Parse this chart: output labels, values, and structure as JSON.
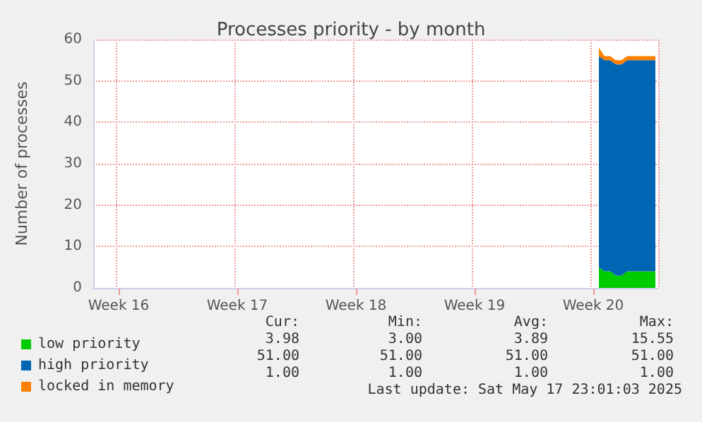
{
  "chart_data": {
    "type": "area",
    "stacked": true,
    "title": "Processes priority - by month",
    "ylabel": "Number of processes",
    "categories": [
      null,
      null,
      null,
      null,
      "Week 16",
      null,
      null,
      null,
      null,
      null,
      null,
      null,
      null,
      null,
      null,
      null,
      null,
      null,
      null,
      null,
      null,
      null,
      null,
      null,
      null,
      "Week 17",
      null,
      null,
      null,
      null,
      null,
      null,
      null,
      null,
      null,
      null,
      null,
      null,
      null,
      null,
      null,
      null,
      null,
      null,
      null,
      null,
      "Week 18",
      null,
      null,
      null,
      null,
      null,
      null,
      null,
      null,
      null,
      null,
      null,
      null,
      null,
      null,
      null,
      null,
      null,
      null,
      null,
      null,
      "Week 19",
      null,
      null,
      null,
      null,
      null,
      null,
      null,
      null,
      null,
      null,
      null,
      null,
      null,
      null,
      null,
      null,
      null,
      null,
      null,
      null,
      "Week 20",
      null,
      null,
      null,
      null,
      null,
      null,
      null,
      null,
      null,
      null,
      null
    ],
    "series": [
      {
        "name": "low priority",
        "color": "#00cc00",
        "values": [
          null,
          null,
          null,
          null,
          null,
          null,
          null,
          null,
          null,
          null,
          null,
          null,
          null,
          null,
          null,
          null,
          null,
          null,
          null,
          null,
          null,
          null,
          null,
          null,
          null,
          null,
          null,
          null,
          null,
          null,
          null,
          null,
          null,
          null,
          null,
          null,
          null,
          null,
          null,
          null,
          null,
          null,
          null,
          null,
          null,
          null,
          null,
          null,
          null,
          null,
          null,
          null,
          null,
          null,
          null,
          null,
          null,
          null,
          null,
          null,
          null,
          null,
          null,
          null,
          null,
          null,
          null,
          null,
          null,
          null,
          null,
          null,
          null,
          null,
          null,
          null,
          null,
          null,
          null,
          null,
          null,
          null,
          null,
          null,
          null,
          null,
          null,
          null,
          null,
          5,
          4,
          4,
          3,
          3,
          4,
          4,
          4,
          4,
          4,
          4
        ]
      },
      {
        "name": "high priority",
        "color": "#0066b3",
        "values": [
          null,
          null,
          null,
          null,
          null,
          null,
          null,
          null,
          null,
          null,
          null,
          null,
          null,
          null,
          null,
          null,
          null,
          null,
          null,
          null,
          null,
          null,
          null,
          null,
          null,
          null,
          null,
          null,
          null,
          null,
          null,
          null,
          null,
          null,
          null,
          null,
          null,
          null,
          null,
          null,
          null,
          null,
          null,
          null,
          null,
          null,
          null,
          null,
          null,
          null,
          null,
          null,
          null,
          null,
          null,
          null,
          null,
          null,
          null,
          null,
          null,
          null,
          null,
          null,
          null,
          null,
          null,
          null,
          null,
          null,
          null,
          null,
          null,
          null,
          null,
          null,
          null,
          null,
          null,
          null,
          null,
          null,
          null,
          null,
          null,
          null,
          null,
          null,
          null,
          51,
          51,
          51,
          51,
          51,
          51,
          51,
          51,
          51,
          51,
          51
        ]
      },
      {
        "name": "locked in memory",
        "color": "#ff8000",
        "values": [
          null,
          null,
          null,
          null,
          null,
          null,
          null,
          null,
          null,
          null,
          null,
          null,
          null,
          null,
          null,
          null,
          null,
          null,
          null,
          null,
          null,
          null,
          null,
          null,
          null,
          null,
          null,
          null,
          null,
          null,
          null,
          null,
          null,
          null,
          null,
          null,
          null,
          null,
          null,
          null,
          null,
          null,
          null,
          null,
          null,
          null,
          null,
          null,
          null,
          null,
          null,
          null,
          null,
          null,
          null,
          null,
          null,
          null,
          null,
          null,
          null,
          null,
          null,
          null,
          null,
          null,
          null,
          null,
          null,
          null,
          null,
          null,
          null,
          null,
          null,
          null,
          null,
          null,
          null,
          null,
          null,
          null,
          null,
          null,
          null,
          null,
          null,
          null,
          null,
          2,
          1,
          1,
          1,
          1,
          1,
          1,
          1,
          1,
          1,
          1
        ]
      }
    ],
    "ylim": [
      0,
      60
    ],
    "yticks": [
      0,
      10,
      20,
      30,
      40,
      50,
      60
    ],
    "grid": true,
    "legend": "bottom left",
    "annotations": [
      "Cur:",
      "Min:",
      "Avg:",
      "Max:",
      "3.98",
      "3.00",
      "3.89",
      "15.55",
      "51.00",
      "51.00",
      "51.00",
      "51.00",
      "1.00",
      "1.00",
      "1.00",
      "1.00",
      "Last update: Sat May 17 23:01:03 2025"
    ]
  }
}
